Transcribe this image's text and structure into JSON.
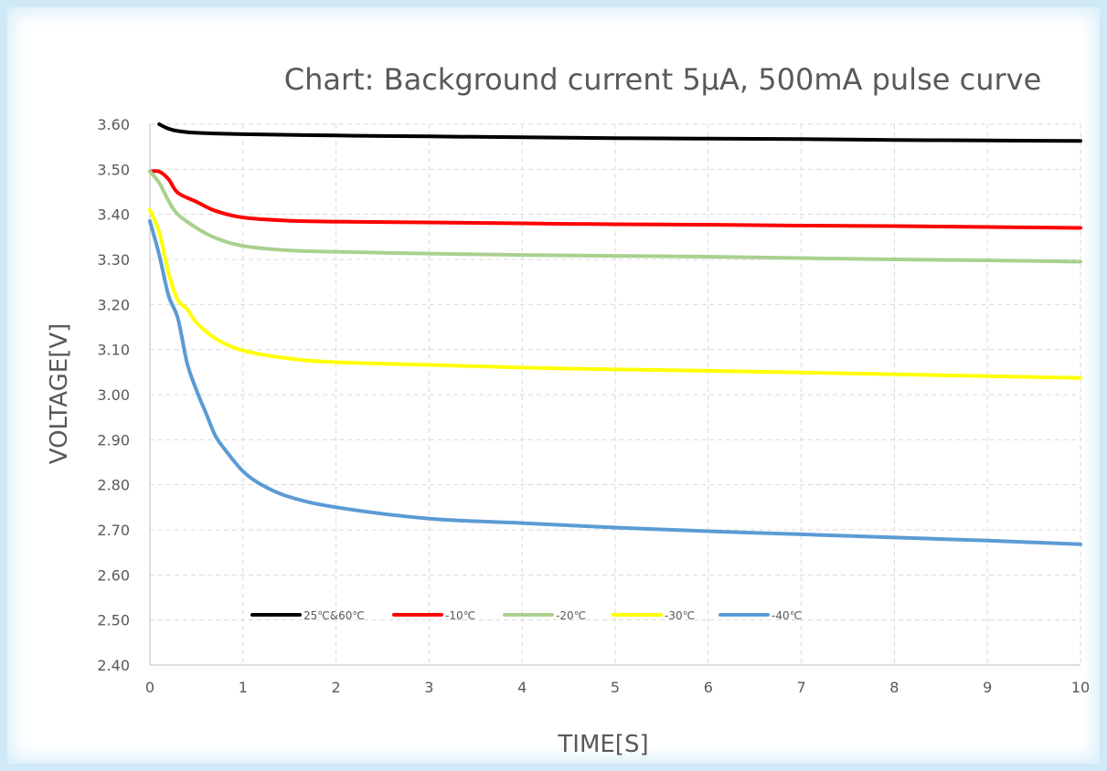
{
  "chart_data": {
    "type": "line",
    "title": "Chart: Background current 5μA, 500mA pulse curve",
    "xlabel": "TIME[S]",
    "ylabel": "VOLTAGE[V]",
    "xlim": [
      0,
      10
    ],
    "ylim": [
      2.4,
      3.6
    ],
    "x_ticks": [
      "0",
      "1",
      "2",
      "3",
      "4",
      "5",
      "6",
      "7",
      "8",
      "9",
      "10"
    ],
    "y_ticks": [
      "2.40",
      "2.50",
      "2.60",
      "2.70",
      "2.80",
      "2.90",
      "3.00",
      "3.10",
      "3.20",
      "3.30",
      "3.40",
      "3.50",
      "3.60"
    ],
    "grid": true,
    "legend_position": "bottom-left inside",
    "series": [
      {
        "name": "25℃&60℃",
        "color": "#000000",
        "x": [
          0.1,
          0.2,
          0.3,
          0.5,
          1,
          2,
          3,
          4,
          5,
          6,
          7,
          8,
          9,
          10
        ],
        "y": [
          3.6,
          3.59,
          3.585,
          3.581,
          3.578,
          3.575,
          3.573,
          3.571,
          3.569,
          3.568,
          3.567,
          3.565,
          3.564,
          3.563
        ]
      },
      {
        "name": "-10℃",
        "color": "#ff0000",
        "x": [
          0,
          0.1,
          0.2,
          0.3,
          0.5,
          0.7,
          1,
          1.5,
          2,
          3,
          4,
          5,
          6,
          7,
          8,
          9,
          10
        ],
        "y": [
          3.495,
          3.495,
          3.478,
          3.448,
          3.428,
          3.408,
          3.393,
          3.386,
          3.384,
          3.382,
          3.38,
          3.378,
          3.377,
          3.375,
          3.374,
          3.372,
          3.37
        ]
      },
      {
        "name": "-20℃",
        "color": "#a9d18e",
        "x": [
          0,
          0.1,
          0.2,
          0.3,
          0.5,
          0.7,
          1,
          1.5,
          2,
          3,
          4,
          5,
          6,
          7,
          8,
          9,
          10
        ],
        "y": [
          3.495,
          3.47,
          3.43,
          3.4,
          3.37,
          3.348,
          3.33,
          3.32,
          3.317,
          3.313,
          3.31,
          3.308,
          3.306,
          3.303,
          3.3,
          3.298,
          3.295
        ]
      },
      {
        "name": "-30℃",
        "color": "#ffff00",
        "x": [
          0,
          0.1,
          0.2,
          0.3,
          0.4,
          0.5,
          0.7,
          1,
          1.5,
          2,
          3,
          4,
          5,
          6,
          7,
          8,
          9,
          10
        ],
        "y": [
          3.41,
          3.36,
          3.27,
          3.21,
          3.19,
          3.16,
          3.125,
          3.098,
          3.08,
          3.072,
          3.066,
          3.06,
          3.056,
          3.053,
          3.049,
          3.045,
          3.041,
          3.037
        ]
      },
      {
        "name": "-40℃",
        "color": "#5b9bd5",
        "x": [
          0,
          0.1,
          0.2,
          0.3,
          0.4,
          0.5,
          0.6,
          0.7,
          0.8,
          1,
          1.2,
          1.5,
          2,
          3,
          4,
          5,
          6,
          7,
          8,
          9,
          10
        ],
        "y": [
          3.385,
          3.31,
          3.22,
          3.17,
          3.07,
          3.01,
          2.96,
          2.91,
          2.88,
          2.83,
          2.8,
          2.773,
          2.75,
          2.725,
          2.715,
          2.705,
          2.697,
          2.69,
          2.683,
          2.676,
          2.668
        ]
      }
    ]
  }
}
